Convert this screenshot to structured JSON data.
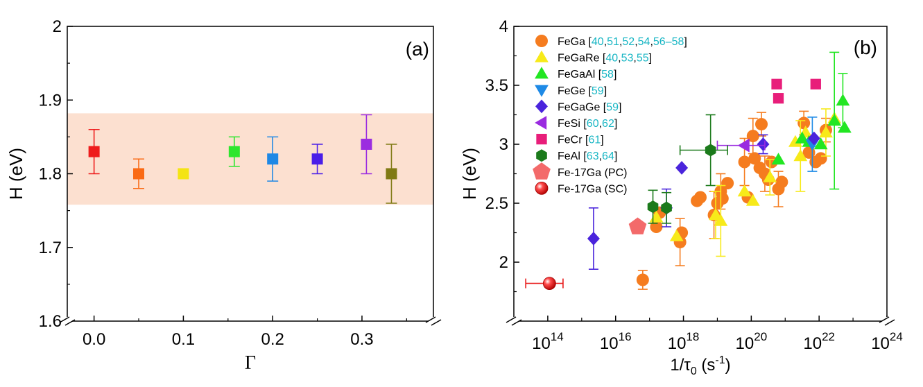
{
  "chart_data": [
    {
      "panel_label": "(a)",
      "type": "scatter",
      "title": "",
      "xlabel": "Γ",
      "ylabel": "H (eV)",
      "xlim": [
        -0.03,
        0.38
      ],
      "ylim": [
        1.6,
        2.0
      ],
      "x_ticks": [
        {
          "value": 0.0,
          "label": "0.0"
        },
        {
          "value": 0.1,
          "label": "0.1"
        },
        {
          "value": 0.2,
          "label": "0.2"
        },
        {
          "value": 0.3,
          "label": "0.3"
        }
      ],
      "y_ticks": [
        {
          "value": 1.6,
          "label": "1.6"
        },
        {
          "value": 1.7,
          "label": "1.7"
        },
        {
          "value": 1.8,
          "label": "1.8"
        },
        {
          "value": 1.9,
          "label": "1.9"
        },
        {
          "value": 2.0,
          "label": "2"
        }
      ],
      "shaded_band": {
        "y_min": 1.758,
        "y_max": 1.882,
        "color": "#fce0d0"
      },
      "grid": false,
      "points": [
        {
          "x": 0.0,
          "y": 1.83,
          "yerr_low": 0.03,
          "yerr_high": 0.03,
          "color": "#ee1c1c"
        },
        {
          "x": 0.05,
          "y": 1.8,
          "yerr_low": 0.02,
          "yerr_high": 0.02,
          "color": "#fa6a14"
        },
        {
          "x": 0.1,
          "y": 1.8,
          "yerr_low": 0.006,
          "yerr_high": 0.006,
          "color": "#f4e413"
        },
        {
          "x": 0.157,
          "y": 1.83,
          "yerr_low": 0.02,
          "yerr_high": 0.02,
          "color": "#2ee62e"
        },
        {
          "x": 0.2,
          "y": 1.82,
          "yerr_low": 0.03,
          "yerr_high": 0.03,
          "color": "#1e88e5"
        },
        {
          "x": 0.25,
          "y": 1.82,
          "yerr_low": 0.02,
          "yerr_high": 0.02,
          "color": "#4a1ee8"
        },
        {
          "x": 0.305,
          "y": 1.84,
          "yerr_low": 0.04,
          "yerr_high": 0.04,
          "color": "#9b2de0"
        },
        {
          "x": 0.333,
          "y": 1.8,
          "yerr_low": 0.04,
          "yerr_high": 0.04,
          "color": "#807a14"
        }
      ]
    },
    {
      "panel_label": "(b)",
      "type": "scatter",
      "title": "",
      "xlabel_main": "1/τ",
      "xlabel_sub": "0",
      "xlabel_unit": " (s",
      "xlabel_exp": "-1",
      "xlabel_close": ")",
      "ylabel": "H (eV)",
      "x_scale": "log",
      "xlim": [
        10000000000000.0,
        1e+24
      ],
      "ylim": [
        1.5,
        4.0
      ],
      "x_ticks": [
        {
          "value": 100000000000000.0,
          "base": "10",
          "exp": "14"
        },
        {
          "value": 1e+16,
          "base": "10",
          "exp": "16"
        },
        {
          "value": 1e+18,
          "base": "10",
          "exp": "18"
        },
        {
          "value": 1e+20,
          "base": "10",
          "exp": "20"
        },
        {
          "value": 1e+22,
          "base": "10",
          "exp": "22"
        },
        {
          "value": 1e+24,
          "base": "10",
          "exp": "24"
        }
      ],
      "y_ticks": [
        {
          "value": 2.0,
          "label": "2"
        },
        {
          "value": 2.5,
          "label": "2.5"
        },
        {
          "value": 3.0,
          "label": "3"
        },
        {
          "value": 3.5,
          "label": "3.5"
        },
        {
          "value": 4.0,
          "label": "4"
        }
      ],
      "grid": false,
      "legend_position": "top-left",
      "legend": [
        {
          "marker": "circle",
          "color": "#f57c1f",
          "name": "FeGa",
          "refs": [
            "40",
            "51",
            "52",
            "54",
            "56–58"
          ]
        },
        {
          "marker": "triangle-up",
          "color": "#f7ea1a",
          "name": "FeGaRe",
          "refs": [
            "40",
            "53",
            "55"
          ]
        },
        {
          "marker": "triangle-up",
          "color": "#22e622",
          "name": "FeGaAl",
          "refs": [
            "58"
          ]
        },
        {
          "marker": "triangle-down",
          "color": "#1e8ae6",
          "name": "FeGe",
          "refs": [
            "59"
          ]
        },
        {
          "marker": "diamond",
          "color": "#4a24dc",
          "name": "FeGaGe",
          "refs": [
            "59"
          ]
        },
        {
          "marker": "triangle-left",
          "color": "#9a2be0",
          "name": "FeSi",
          "refs": [
            "60",
            "62"
          ]
        },
        {
          "marker": "square",
          "color": "#e81e7a",
          "name": "FeCr",
          "refs": [
            "61"
          ]
        },
        {
          "marker": "hexagon",
          "color": "#1b7a1b",
          "name": "FeAl",
          "refs": [
            "63",
            "64"
          ]
        },
        {
          "marker": "pentagon",
          "color": "#f36a6a",
          "name": "Fe-17Ga (PC)",
          "refs": []
        },
        {
          "marker": "sphere",
          "color": "#e81818",
          "name": "Fe-17Ga (SC)",
          "refs": []
        }
      ],
      "series": [
        {
          "name": "FeGa",
          "points": [
            {
              "lx": 16.8,
              "y": 1.85,
              "el": 0.08,
              "eh": 0.08
            },
            {
              "lx": 17.2,
              "y": 2.3
            },
            {
              "lx": 17.3,
              "y": 2.42
            },
            {
              "lx": 17.9,
              "y": 2.17,
              "el": 0.2,
              "eh": 0.2
            },
            {
              "lx": 17.95,
              "y": 2.25
            },
            {
              "lx": 18.4,
              "y": 2.52
            },
            {
              "lx": 18.5,
              "y": 2.55
            },
            {
              "lx": 18.9,
              "y": 2.4,
              "el": 0.2,
              "eh": 0.2
            },
            {
              "lx": 19.0,
              "y": 2.5
            },
            {
              "lx": 19.1,
              "y": 2.6,
              "el": 0.15,
              "eh": 0.15
            },
            {
              "lx": 19.15,
              "y": 2.54
            },
            {
              "lx": 19.3,
              "y": 2.67
            },
            {
              "lx": 19.8,
              "y": 2.85,
              "el": 0.2,
              "eh": 0.2
            },
            {
              "lx": 19.9,
              "y": 2.55
            },
            {
              "lx": 20.05,
              "y": 3.07,
              "el": 0.15,
              "eh": 0.15
            },
            {
              "lx": 20.1,
              "y": 2.88
            },
            {
              "lx": 20.25,
              "y": 2.8
            },
            {
              "lx": 20.3,
              "y": 3.17,
              "el": 0.1,
              "eh": 0.1
            },
            {
              "lx": 20.4,
              "y": 2.75,
              "el": 0.15,
              "eh": 0.15
            },
            {
              "lx": 20.5,
              "y": 2.7
            },
            {
              "lx": 20.6,
              "y": 2.85
            },
            {
              "lx": 20.8,
              "y": 2.62,
              "el": 0.15,
              "eh": 0.15
            },
            {
              "lx": 20.9,
              "y": 2.68
            },
            {
              "lx": 21.55,
              "y": 3.18,
              "el": 0.1,
              "eh": 0.1
            },
            {
              "lx": 21.7,
              "y": 2.93
            },
            {
              "lx": 21.9,
              "y": 2.85
            },
            {
              "lx": 22.05,
              "y": 2.88
            },
            {
              "lx": 22.2,
              "y": 3.12,
              "el": 0.1,
              "eh": 0.1
            }
          ]
        },
        {
          "name": "FeGaRe",
          "points": [
            {
              "lx": 17.2,
              "y": 2.38
            },
            {
              "lx": 17.8,
              "y": 2.22
            },
            {
              "lx": 18.95,
              "y": 2.4,
              "el": 0.2,
              "eh": 0.2
            },
            {
              "lx": 19.1,
              "y": 2.35,
              "el": 0.3,
              "eh": 0.3
            },
            {
              "lx": 19.8,
              "y": 2.6
            },
            {
              "lx": 20.05,
              "y": 2.52
            },
            {
              "lx": 20.55,
              "y": 2.72,
              "el": 0.15,
              "eh": 0.15
            },
            {
              "lx": 21.3,
              "y": 3.02
            },
            {
              "lx": 21.45,
              "y": 2.9,
              "el": 0.3,
              "eh": 0.3
            },
            {
              "lx": 21.6,
              "y": 3.1
            },
            {
              "lx": 22.2,
              "y": 3.1,
              "el": 0.2,
              "eh": 0.2
            },
            {
              "lx": 22.45,
              "y": 3.22
            }
          ]
        },
        {
          "name": "FeGaAl",
          "points": [
            {
              "lx": 20.8,
              "y": 2.87
            },
            {
              "lx": 21.5,
              "y": 3.05
            },
            {
              "lx": 21.7,
              "y": 3.02
            },
            {
              "lx": 22.05,
              "y": 3.0
            },
            {
              "lx": 22.45,
              "y": 3.2,
              "el": 0.58,
              "eh": 0.58
            },
            {
              "lx": 22.7,
              "y": 3.37,
              "el": 0.23,
              "eh": 0.23
            },
            {
              "lx": 22.75,
              "y": 3.14
            }
          ]
        },
        {
          "name": "FeGe",
          "points": [
            {
              "lx": 21.8,
              "y": 3.0,
              "el": 0.23,
              "eh": 0.23
            }
          ]
        },
        {
          "name": "FeGaGe",
          "points": [
            {
              "lx": 15.35,
              "y": 2.2,
              "el": 0.26,
              "eh": 0.26
            },
            {
              "lx": 17.5,
              "y": 2.46,
              "el": 0.16,
              "eh": 0.16
            },
            {
              "lx": 17.95,
              "y": 2.8
            },
            {
              "lx": 20.35,
              "y": 3.0,
              "el": 0.08,
              "eh": 0.08
            },
            {
              "lx": 21.85,
              "y": 3.05
            }
          ]
        },
        {
          "name": "FeSi",
          "points": [
            {
              "lx": 19.8,
              "y": 2.99,
              "xl": 0.8,
              "xh": 0.6
            }
          ]
        },
        {
          "name": "FeCr",
          "points": [
            {
              "lx": 20.75,
              "y": 3.51
            },
            {
              "lx": 20.8,
              "y": 3.39
            },
            {
              "lx": 21.9,
              "y": 3.51
            }
          ]
        },
        {
          "name": "FeAl",
          "points": [
            {
              "lx": 17.1,
              "y": 2.47,
              "el": 0.14,
              "eh": 0.14
            },
            {
              "lx": 17.5,
              "y": 2.46,
              "el": 0.13,
              "eh": 0.13
            },
            {
              "lx": 18.8,
              "y": 2.95,
              "el": 0.3,
              "eh": 0.3,
              "xl": 0.9,
              "xh": 0.5
            }
          ]
        },
        {
          "name": "Fe-17Ga (PC)",
          "points": [
            {
              "lx": 16.65,
              "y": 2.3
            }
          ]
        },
        {
          "name": "Fe-17Ga (SC)",
          "points": [
            {
              "lx": 14.05,
              "y": 1.82,
              "xl": 0.7,
              "xh": 0.4
            }
          ]
        }
      ]
    }
  ]
}
